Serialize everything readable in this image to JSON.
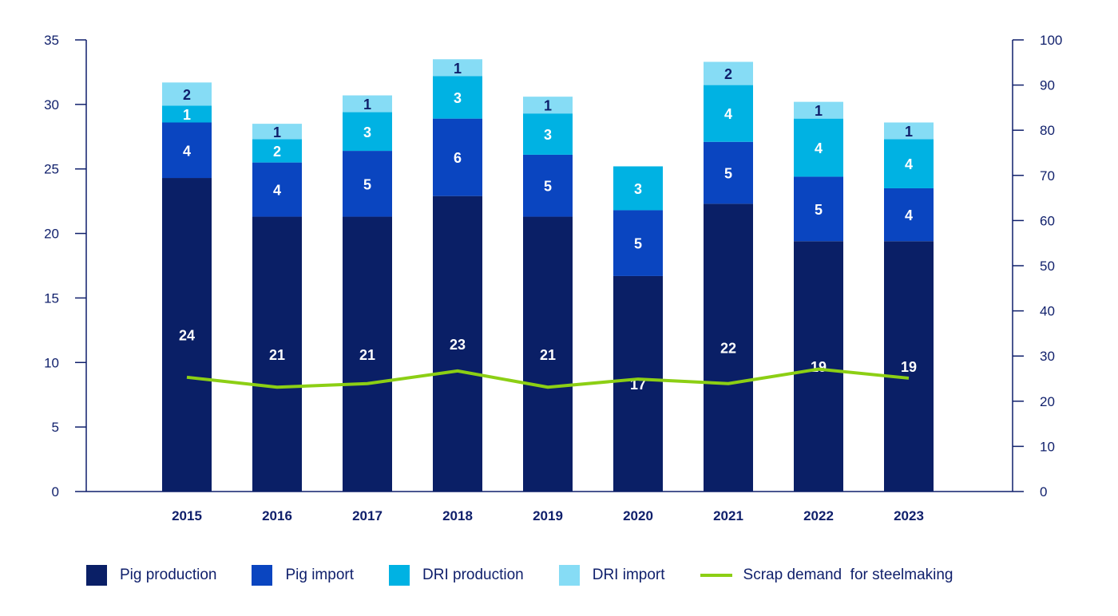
{
  "chart_data": {
    "type": "bar",
    "stacked": true,
    "categories": [
      "2015",
      "2016",
      "2017",
      "2018",
      "2019",
      "2020",
      "2021",
      "2022",
      "2023"
    ],
    "series": [
      {
        "name": "Pig production",
        "color": "#0a1f66",
        "label_color": "#ffffff",
        "values": [
          24.3,
          21.3,
          21.3,
          22.9,
          21.3,
          16.7,
          22.3,
          19.4,
          19.4
        ],
        "labels": [
          "24",
          "21",
          "21",
          "23",
          "21",
          "17",
          "22",
          "19",
          "19"
        ]
      },
      {
        "name": "Pig import",
        "color": "#0a45c0",
        "label_color": "#ffffff",
        "values": [
          4.3,
          4.2,
          5.1,
          6.0,
          4.8,
          5.1,
          4.8,
          5.0,
          4.1
        ],
        "labels": [
          "4",
          "4",
          "5",
          "6",
          "5",
          "5",
          "5",
          "5",
          "4"
        ]
      },
      {
        "name": "DRI production",
        "color": "#00b2e3",
        "label_color": "#ffffff",
        "values": [
          1.3,
          1.8,
          3.0,
          3.3,
          3.2,
          3.4,
          4.4,
          4.5,
          3.8
        ],
        "labels": [
          "1",
          "2",
          "3",
          "3",
          "3",
          "3",
          "4",
          "4",
          "4"
        ]
      },
      {
        "name": "DRI import",
        "color": "#86dcf5",
        "label_color": "#0f1f6b",
        "values": [
          1.8,
          1.2,
          1.3,
          1.3,
          1.3,
          0,
          1.8,
          1.3,
          1.3
        ],
        "labels": [
          "2",
          "1",
          "1",
          "1",
          "1",
          "",
          "2",
          "1",
          "1"
        ]
      }
    ],
    "line_series": {
      "name": "Scrap demand  for steelmaking",
      "color": "#8ccf14",
      "axis": "right",
      "values": [
        25.3,
        23.1,
        23.9,
        26.7,
        23.1,
        24.9,
        23.9,
        27.1,
        25.1
      ]
    },
    "y_left": {
      "ylim": [
        0,
        35
      ],
      "ticks": [
        "0",
        "5",
        "10",
        "15",
        "20",
        "25",
        "30",
        "35"
      ]
    },
    "y_right": {
      "ylim": [
        0,
        100
      ],
      "ticks": [
        "0",
        "10",
        "20",
        "30",
        "40",
        "50",
        "60",
        "70",
        "80",
        "90",
        "100"
      ]
    },
    "title": "",
    "xlabel": "",
    "ylabel": "",
    "grid": false,
    "legend_position": "bottom"
  }
}
